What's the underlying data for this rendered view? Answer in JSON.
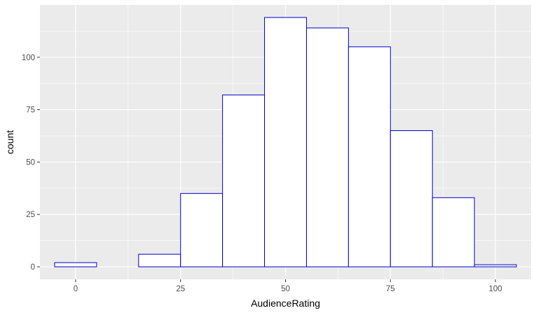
{
  "chart_data": {
    "type": "bar",
    "subtype": "histogram",
    "xlabel": "AudienceRating",
    "ylabel": "count",
    "xlim": [
      -8.5,
      108.5
    ],
    "ylim": [
      -6,
      125
    ],
    "x_ticks": [
      0,
      25,
      50,
      75,
      100
    ],
    "y_ticks": [
      0,
      25,
      50,
      75,
      100
    ],
    "x_tick_labels": [
      "0",
      "25",
      "50",
      "75",
      "100"
    ],
    "y_tick_labels": [
      "0",
      "25",
      "50",
      "75",
      "100"
    ],
    "bin_width": 10,
    "bins": [
      {
        "x_start": -5,
        "x_end": 5,
        "count": 2
      },
      {
        "x_start": 5,
        "x_end": 15,
        "count": 0
      },
      {
        "x_start": 15,
        "x_end": 25,
        "count": 6
      },
      {
        "x_start": 25,
        "x_end": 35,
        "count": 35
      },
      {
        "x_start": 35,
        "x_end": 45,
        "count": 82
      },
      {
        "x_start": 45,
        "x_end": 55,
        "count": 119
      },
      {
        "x_start": 55,
        "x_end": 65,
        "count": 114
      },
      {
        "x_start": 65,
        "x_end": 75,
        "count": 105
      },
      {
        "x_start": 75,
        "x_end": 85,
        "count": 65
      },
      {
        "x_start": 85,
        "x_end": 95,
        "count": 33
      },
      {
        "x_start": 95,
        "x_end": 105,
        "count": 1
      }
    ],
    "grid": true,
    "colors": {
      "panel_background": "#ebebeb",
      "grid_major": "#ffffff",
      "bar_fill": "#ffffff",
      "bar_outline": "#0000cd"
    }
  }
}
